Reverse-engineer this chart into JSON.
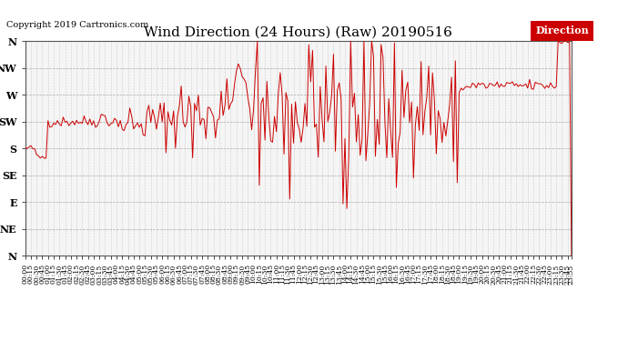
{
  "title": "Wind Direction (24 Hours) (Raw) 20190516",
  "copyright": "Copyright 2019 Cartronics.com",
  "legend_label": "Direction",
  "legend_bg": "#cc0000",
  "legend_fg": "#ffffff",
  "line_color": "#cc0000",
  "bg_color": "#ffffff",
  "plot_bg": "#f5f5f5",
  "grid_color": "#aaaaaa",
  "ytick_labels": [
    "N",
    "NW",
    "W",
    "SW",
    "S",
    "SE",
    "E",
    "NE",
    "N"
  ],
  "ytick_values": [
    360,
    315,
    270,
    225,
    180,
    135,
    90,
    45,
    0
  ],
  "ylim": [
    0,
    360
  ],
  "xlabel": "",
  "ylabel": ""
}
